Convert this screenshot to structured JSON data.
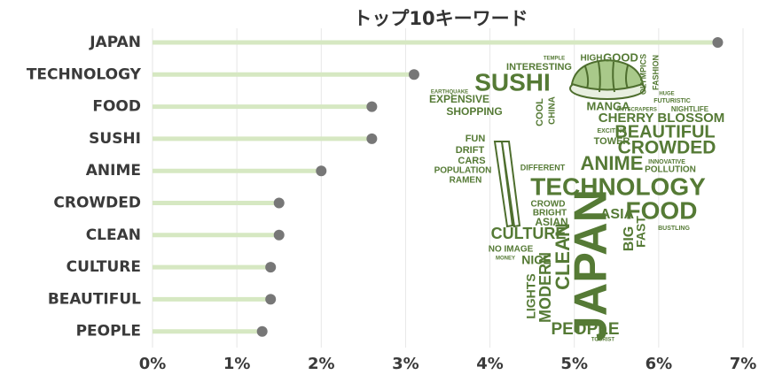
{
  "chart_data": {
    "type": "lollipop",
    "title": "トップ10キーワード",
    "categories": [
      "JAPAN",
      "TECHNOLOGY",
      "FOOD",
      "SUSHI",
      "ANIME",
      "CROWDED",
      "CLEAN",
      "CULTURE",
      "BEAUTIFUL",
      "PEOPLE"
    ],
    "values": [
      6.7,
      3.1,
      2.6,
      2.6,
      2.0,
      1.5,
      1.5,
      1.4,
      1.4,
      1.3
    ],
    "color": "#d6e8c2",
    "dot_color": "#777777",
    "word_color": "#557a35",
    "xlim": [
      0,
      7
    ],
    "xticks": [
      {
        "value": 0,
        "label": "0%"
      },
      {
        "value": 1,
        "label": "1%"
      },
      {
        "value": 2,
        "label": "2%"
      },
      {
        "value": 3,
        "label": "3%"
      },
      {
        "value": 4,
        "label": "4%"
      },
      {
        "value": 5,
        "label": "5%"
      },
      {
        "value": 6,
        "label": "6%"
      },
      {
        "value": 7,
        "label": "7%"
      }
    ],
    "grid": true,
    "word_cloud": [
      "TEMPLE",
      "HIGH",
      "GOOD",
      "INTERESTING",
      "SUSHI",
      "EARTHQUAKE",
      "EXPENSIVE",
      "SHOPPING",
      "MANGA",
      "SKYSCRAPERS",
      "NIGHTLIFE",
      "CHERRY BLOSSOM",
      "BEAUTIFUL",
      "CROWDED",
      "FUN",
      "DRIFT",
      "CARS",
      "ANIME",
      "POPULATION",
      "RAMEN",
      "TECHNOLOGY",
      "FOOD",
      "ASIA",
      "CROWD",
      "BRIGHT",
      "ASIAN",
      "CULTURE",
      "NO IMAGE",
      "NICE",
      "MONEY",
      "PEOPLE",
      "TOURIST",
      "JAPAN",
      "CLEAN",
      "MODERN",
      "LIGHTS",
      "BIG",
      "FAST",
      "INNOVATIVE",
      "POLLUTION",
      "FUTURISTIC",
      "HUGE",
      "FASHION",
      "OLYMPICS",
      "CHINA",
      "COOL",
      "TOWER",
      "DIFFERENT",
      "BUSTLING",
      "EXCITING"
    ]
  }
}
